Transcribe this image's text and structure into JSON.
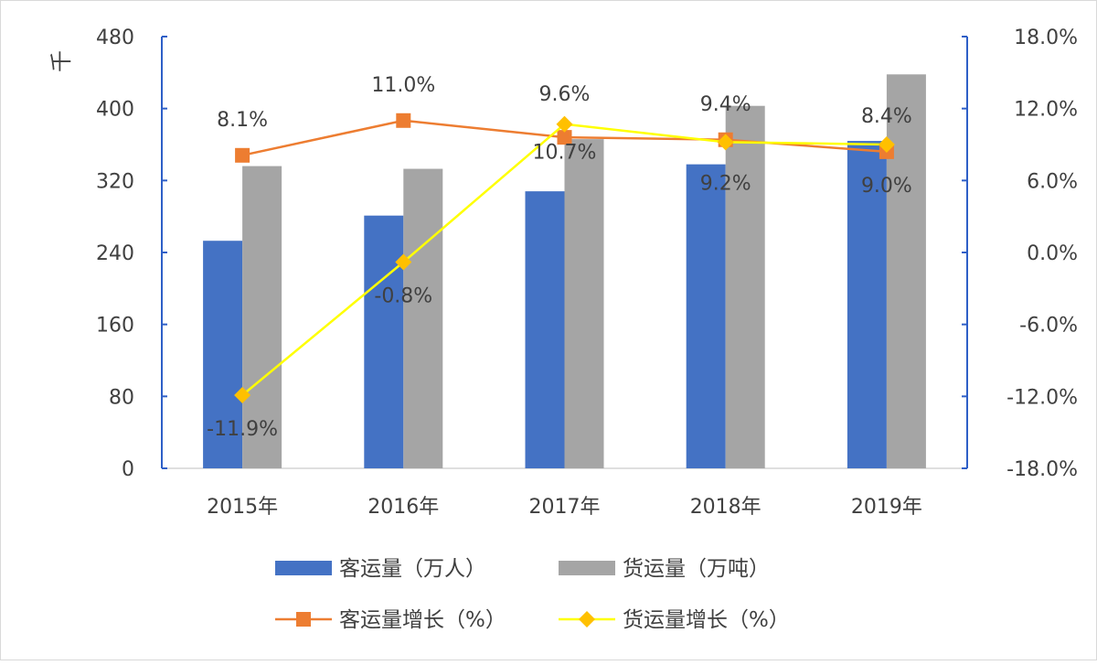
{
  "chart_data": {
    "type": "bar+line",
    "categories": [
      "2015年",
      "2016年",
      "2017年",
      "2018年",
      "2019年"
    ],
    "left_axis": {
      "unit_label": "千",
      "ylim": [
        0,
        480
      ],
      "ticks": [
        "0",
        "80",
        "160",
        "240",
        "320",
        "400",
        "480"
      ],
      "tick_values": [
        0,
        80,
        160,
        240,
        320,
        400,
        480
      ]
    },
    "right_axis": {
      "ylim": [
        -18,
        18
      ],
      "ticks": [
        "-18.0%",
        "-12.0%",
        "-6.0%",
        "0.0%",
        "6.0%",
        "12.0%",
        "18.0%"
      ],
      "tick_values": [
        -18,
        -12,
        -6,
        0,
        6,
        12,
        18
      ]
    },
    "bar_series": [
      {
        "name": "客运量（万人）",
        "color": "#4472c4",
        "values": [
          253,
          281,
          308,
          338,
          364
        ]
      },
      {
        "name": "货运量（万吨）",
        "color": "#a5a5a5",
        "values": [
          336,
          333,
          366,
          403,
          438
        ]
      }
    ],
    "line_series": [
      {
        "name": "客运量增长（%）",
        "color": "#ed7d31",
        "marker": "square",
        "values": [
          8.1,
          11.0,
          9.6,
          9.4,
          8.4
        ],
        "labels": [
          "8.1%",
          "11.0%",
          "9.6%",
          "9.4%",
          "8.4%"
        ]
      },
      {
        "name": "货运量增长（%）",
        "color": "#ffff00",
        "marker": "diamond",
        "marker_color": "#ffc000",
        "values": [
          -11.9,
          -0.8,
          10.7,
          9.2,
          9.0
        ],
        "labels": [
          "-11.9%",
          "-0.8%",
          "10.7%",
          "9.2%",
          "9.0%"
        ]
      }
    ],
    "grid": false,
    "legend_placement": "bottom"
  }
}
